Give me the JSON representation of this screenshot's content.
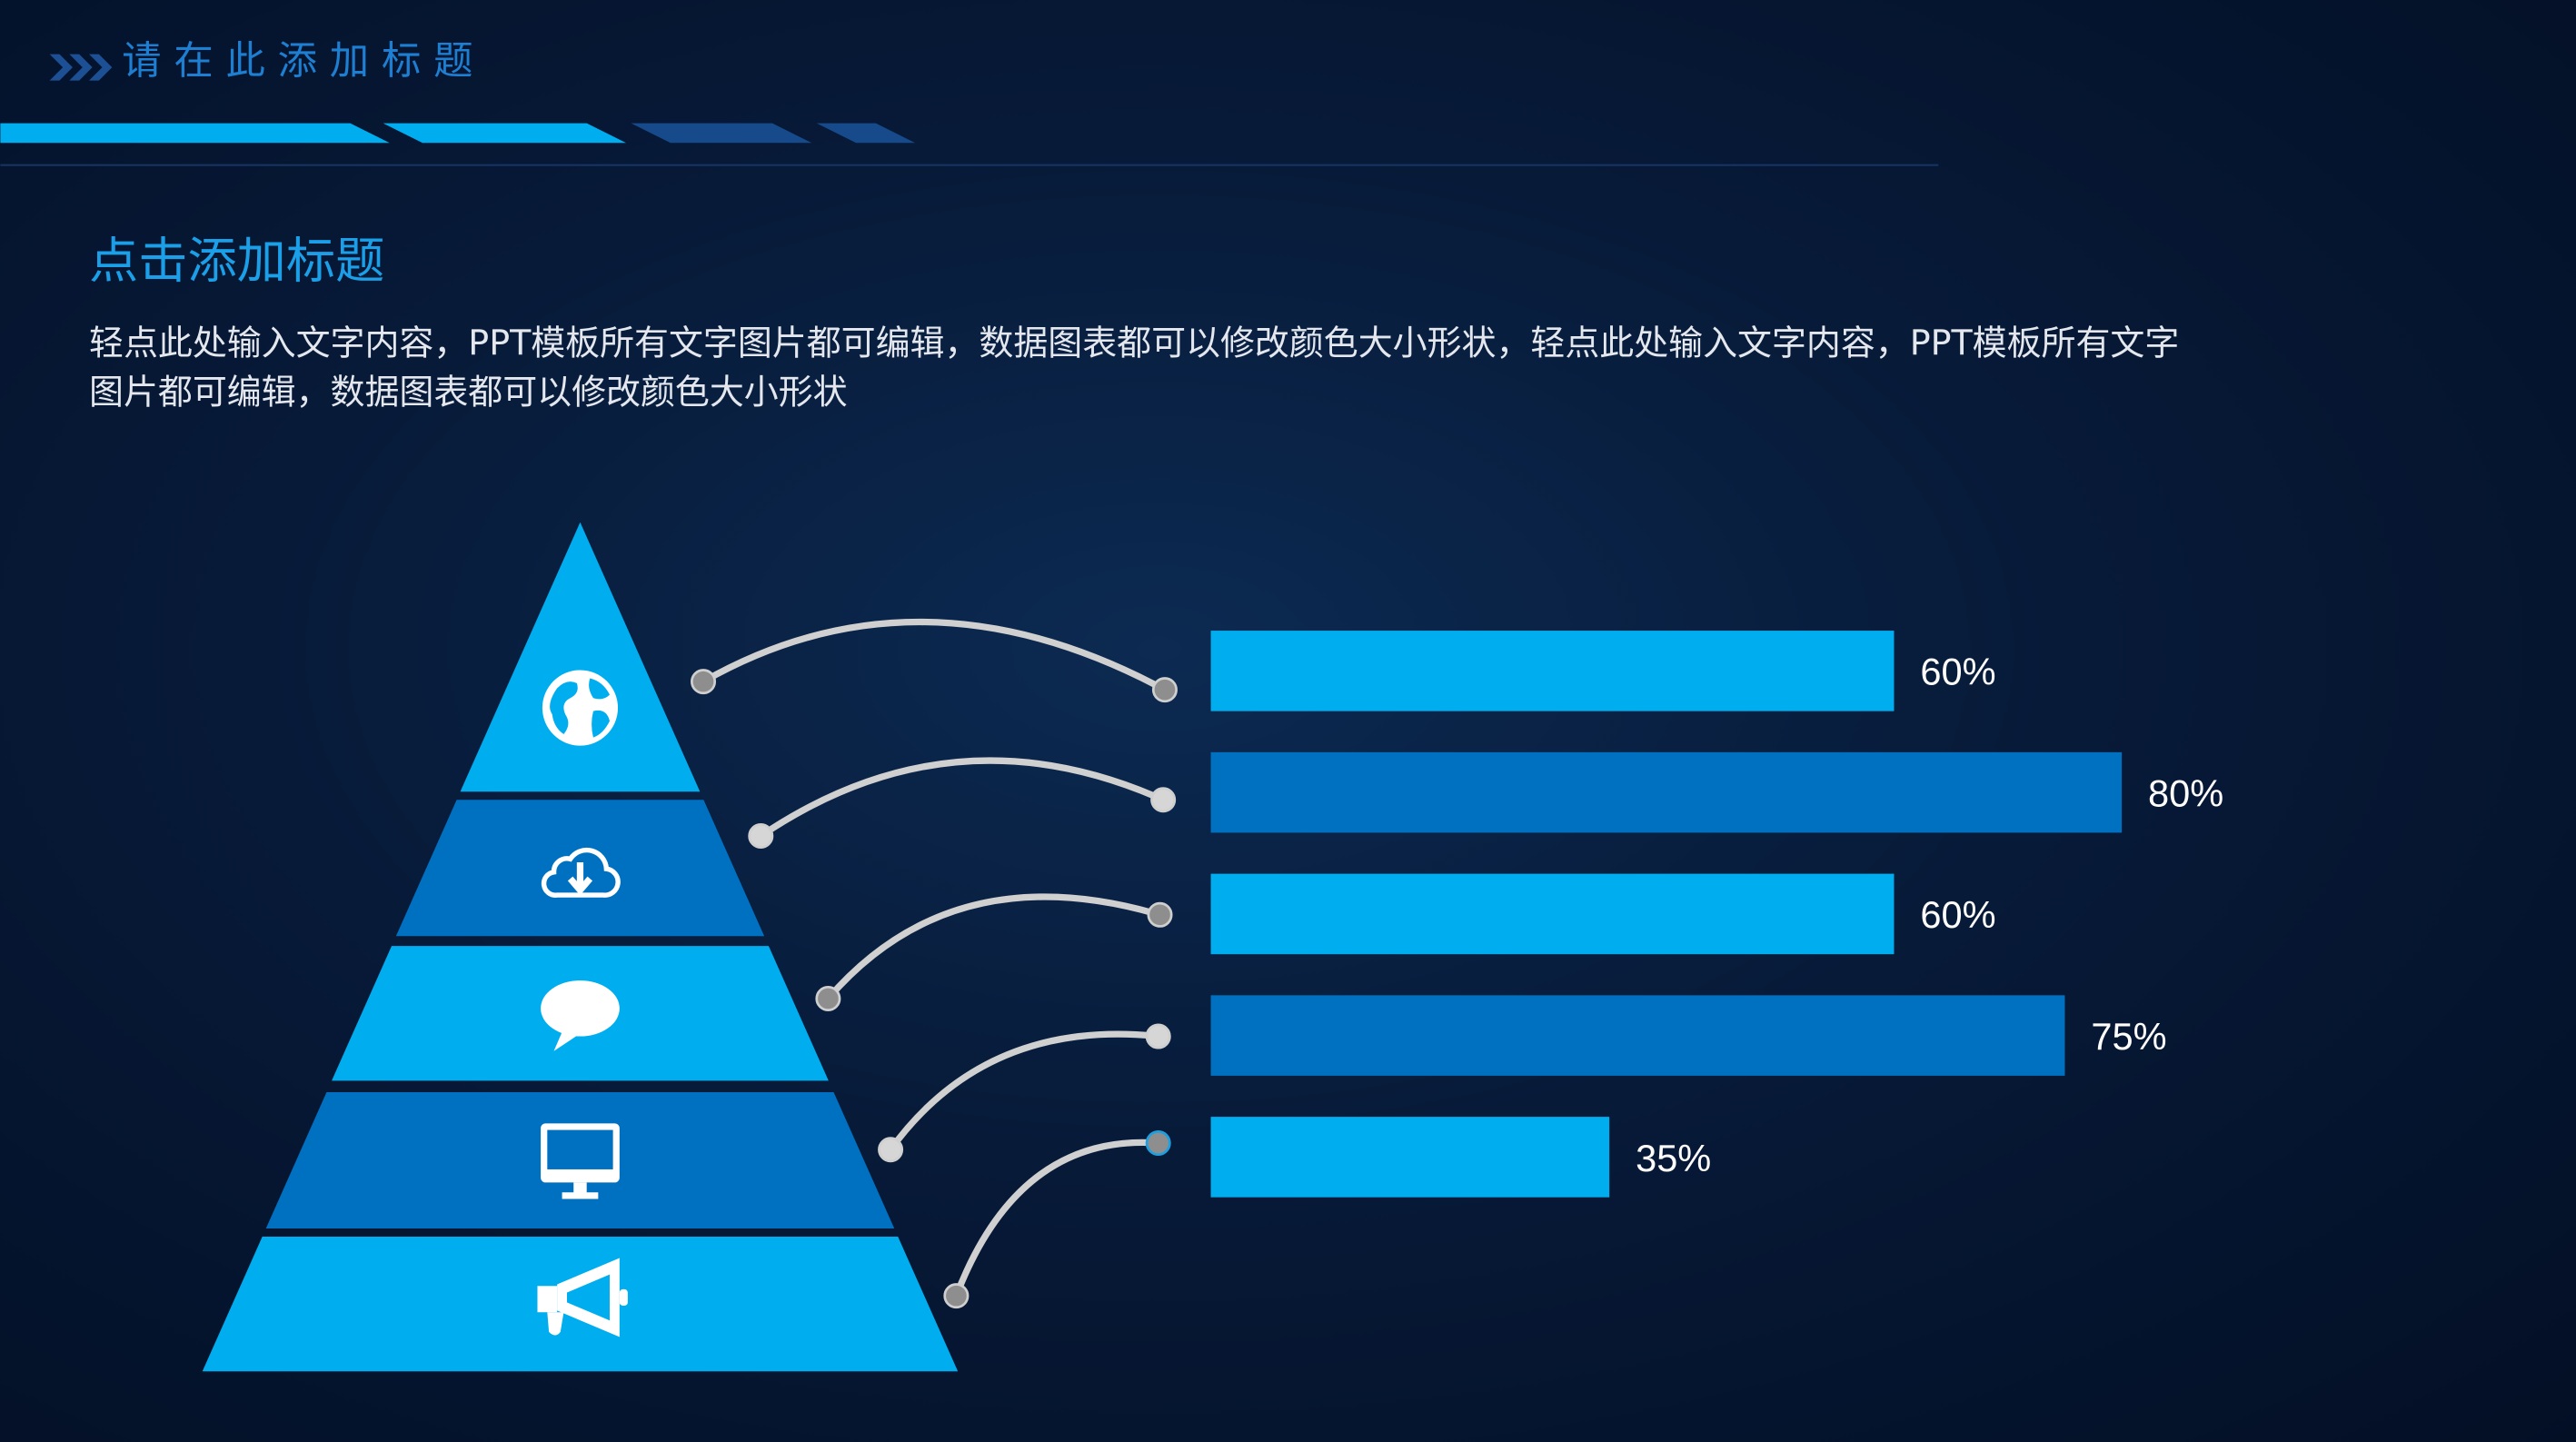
{
  "header": {
    "title": "请 在 此 添 加 标 题",
    "chevron_icon": "triple-chevron-right-icon",
    "colors": {
      "title": "#1e7fd2",
      "stripe_light": "#00aeef",
      "stripe_dark": "#174a8a"
    }
  },
  "content": {
    "subtitle": "点击添加标题",
    "body_lines": [
      "轻点此处输入文字内容，PPT模板所有文字图片都可编辑，数据图表都可以修改颜色大小形状，轻点此处输入文字内容，PPT模板所有文字",
      "图片都可编辑，数据图表都可以修改颜色大小形状"
    ]
  },
  "pyramid": {
    "levels": [
      {
        "icon": "globe-icon",
        "color": "#00aeef"
      },
      {
        "icon": "cloud-download-icon",
        "color": "#0071c1"
      },
      {
        "icon": "speech-bubble-icon",
        "color": "#00aeef"
      },
      {
        "icon": "monitor-icon",
        "color": "#0071c1"
      },
      {
        "icon": "megaphone-icon",
        "color": "#00aeef"
      }
    ]
  },
  "chart_data": {
    "type": "bar",
    "orientation": "horizontal",
    "values": [
      60,
      80,
      60,
      75,
      35
    ],
    "labels": [
      "60%",
      "80%",
      "60%",
      "75%",
      "35%"
    ],
    "colors": [
      "#00aeef",
      "#0071c1",
      "#00aeef",
      "#0071c1",
      "#00aeef"
    ],
    "xlim": [
      0,
      100
    ],
    "grid": false
  }
}
